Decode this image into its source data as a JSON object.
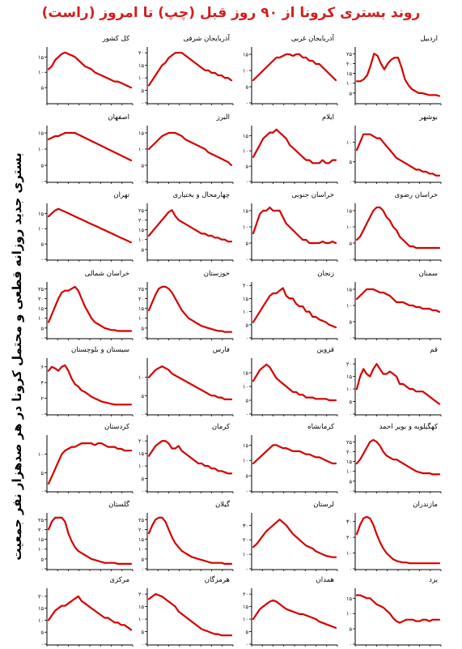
{
  "title": "روند بستری کرونا از ۹۰ روز قبل (چپ) تا امروز (راست)",
  "y_axis_title": "بستری جدید روزانه قطعی و محتمل کرونا در هر صدهزار نفر جمعیت",
  "colors": {
    "title": "#d41e1e",
    "line": "#d40000",
    "axis": "#000000"
  },
  "chart_data": [
    {
      "type": "line",
      "title": "اردبیل",
      "yticks": [
        5,
        10,
        15,
        20,
        25
      ],
      "ylim": [
        0,
        28
      ],
      "values": [
        11,
        11,
        12,
        14,
        19,
        25,
        24,
        20,
        17,
        20,
        22,
        23,
        23,
        18,
        12,
        9,
        7,
        6,
        5,
        5,
        4.5,
        4,
        4,
        4,
        3.5
      ]
    },
    {
      "type": "line",
      "title": "آذربایجان غربی",
      "yticks": [
        0,
        5,
        10,
        15
      ],
      "ylim": [
        0,
        17
      ],
      "values": [
        7,
        8,
        9,
        10,
        11,
        12,
        13,
        14,
        14,
        14.5,
        15,
        15,
        14.5,
        15,
        15,
        14,
        14,
        13,
        13,
        12,
        12,
        11,
        10,
        9,
        8,
        7
      ]
    },
    {
      "type": "line",
      "title": "آذربایجان شرقی",
      "yticks": [
        0,
        5,
        10,
        15,
        20
      ],
      "ylim": [
        0,
        22
      ],
      "values": [
        7,
        9,
        11,
        13,
        15,
        16,
        18,
        19,
        20,
        20,
        20,
        19,
        18,
        17,
        16,
        15,
        14,
        13,
        13,
        12,
        12,
        11,
        11,
        10,
        10,
        9
      ]
    },
    {
      "type": "line",
      "title": "کل کشور",
      "yticks": [
        5,
        10,
        15
      ],
      "ylim": [
        0,
        18
      ],
      "values": [
        11,
        12,
        14,
        15,
        16,
        16.5,
        16,
        15.5,
        15,
        14,
        13,
        12,
        11.5,
        11,
        10,
        9.5,
        9,
        8.5,
        8,
        7.5,
        7,
        7,
        6.5,
        6,
        5.5,
        5
      ]
    },
    {
      "type": "line",
      "title": "بوشهر",
      "yticks": [
        0,
        5,
        10
      ],
      "ylim": [
        0,
        14
      ],
      "values": [
        8,
        10,
        12,
        12,
        12,
        11.5,
        11,
        11,
        10,
        9,
        8,
        7,
        6,
        5.5,
        5,
        4.5,
        4,
        3.5,
        3,
        3,
        2.5,
        2.5,
        2,
        2,
        1.5,
        1.5
      ]
    },
    {
      "type": "line",
      "title": "ایلام",
      "yticks": [
        0,
        5,
        10,
        15
      ],
      "ylim": [
        0,
        18
      ],
      "values": [
        8,
        10,
        12,
        14,
        15,
        16,
        16,
        17,
        16,
        15,
        14,
        12,
        11,
        10,
        9,
        8,
        7,
        7,
        6,
        6,
        6,
        7,
        6,
        6,
        7,
        7
      ]
    },
    {
      "type": "line",
      "title": "البرز",
      "yticks": [
        0,
        5,
        10,
        15
      ],
      "ylim": [
        0,
        17
      ],
      "values": [
        10,
        11,
        12,
        13,
        14,
        14.5,
        15,
        15,
        15,
        14.5,
        14,
        13,
        12.5,
        12,
        11.5,
        11,
        10.5,
        10,
        9,
        8.5,
        8,
        7.5,
        7,
        6.5,
        6,
        5
      ]
    },
    {
      "type": "line",
      "title": "اصفهان",
      "yticks": [
        0,
        5,
        10,
        15
      ],
      "ylim": [
        0,
        17
      ],
      "values": [
        13,
        13.5,
        14,
        14,
        14.5,
        15,
        15,
        15,
        15,
        14.5,
        14,
        13.5,
        13,
        12.5,
        12,
        11.5,
        11,
        10.5,
        10,
        9.5,
        9,
        8.5,
        8,
        7.5,
        7,
        6.5
      ]
    },
    {
      "type": "line",
      "title": "خراسان رضوی",
      "yticks": [
        0,
        5,
        10,
        15
      ],
      "ylim": [
        0,
        17
      ],
      "values": [
        6,
        7,
        9,
        11,
        13,
        15,
        16,
        16,
        15,
        13,
        12,
        10,
        9,
        7,
        6,
        5,
        4,
        4,
        3.5,
        3.5,
        3.5,
        3.5,
        3.5,
        3.5,
        3.5,
        3.5
      ]
    },
    {
      "type": "line",
      "title": "خراسان جنوبی",
      "yticks": [
        0,
        5,
        10,
        15
      ],
      "ylim": [
        0,
        17
      ],
      "values": [
        8,
        11,
        14,
        15,
        15,
        16,
        15,
        15,
        15,
        13,
        11,
        10,
        9,
        8,
        7,
        6,
        6,
        5,
        5,
        5,
        5,
        5.5,
        5,
        5,
        5.5,
        5
      ]
    },
    {
      "type": "line",
      "title": "چهارمحال و بختیاری",
      "yticks": [
        5,
        10,
        15,
        20,
        25
      ],
      "ylim": [
        0,
        28
      ],
      "values": [
        12,
        14,
        16,
        18,
        20,
        22,
        24,
        25,
        22,
        20,
        19,
        18,
        17,
        16,
        15,
        14,
        13,
        13,
        12,
        12,
        11,
        11,
        10,
        10,
        9,
        9
      ]
    },
    {
      "type": "line",
      "title": "تهران",
      "yticks": [
        0,
        5,
        10,
        15
      ],
      "ylim": [
        0,
        18
      ],
      "values": [
        14,
        15,
        16,
        16.5,
        16,
        15.5,
        15,
        14.5,
        14,
        13.5,
        13,
        12.5,
        12,
        11.5,
        11,
        10.5,
        10,
        9.5,
        9,
        8.5,
        8,
        7.5,
        7,
        6.5,
        6,
        5.5
      ]
    },
    {
      "type": "line",
      "title": "سمنان",
      "yticks": [
        0,
        5,
        10,
        15
      ],
      "ylim": [
        0,
        17
      ],
      "values": [
        12,
        13,
        14,
        15,
        15,
        15,
        14.5,
        14,
        14,
        13.5,
        13,
        12,
        11,
        11,
        11,
        10.5,
        10,
        10,
        9.5,
        9.5,
        9,
        9,
        9,
        8.5,
        8.5,
        8
      ]
    },
    {
      "type": "line",
      "title": "زنجان",
      "yticks": [
        0,
        5,
        10,
        15,
        20
      ],
      "ylim": [
        0,
        21
      ],
      "values": [
        6,
        8,
        10,
        12,
        14,
        16,
        17,
        17,
        18,
        19,
        16,
        15,
        15,
        13,
        12,
        12,
        10,
        10,
        8,
        8,
        7,
        6.5,
        6,
        5,
        4.5,
        4
      ]
    },
    {
      "type": "line",
      "title": "خوزستان",
      "yticks": [
        0,
        5,
        10,
        15,
        20,
        25
      ],
      "ylim": [
        0,
        28
      ],
      "values": [
        14,
        18,
        22,
        25,
        26,
        26,
        25,
        23,
        20,
        17,
        14,
        12,
        10,
        9,
        8,
        7,
        6,
        5.5,
        5,
        4.5,
        4,
        3.5,
        3.5,
        3,
        3,
        3
      ]
    },
    {
      "type": "line",
      "title": "خراسان شمالی",
      "yticks": [
        0,
        5,
        10,
        15,
        20,
        25
      ],
      "ylim": [
        0,
        28
      ],
      "values": [
        8,
        12,
        16,
        20,
        23,
        24,
        24,
        25,
        26,
        24,
        20,
        16,
        13,
        10,
        8,
        7,
        6,
        5,
        4.5,
        4,
        4,
        3.5,
        3.5,
        3.5,
        3.5,
        3.5
      ]
    },
    {
      "type": "line",
      "title": "قم",
      "yticks": [
        0,
        5,
        10,
        15,
        20
      ],
      "ylim": [
        0,
        22
      ],
      "values": [
        10,
        15,
        18,
        16,
        15,
        18,
        20,
        18,
        16,
        16,
        17,
        16,
        15,
        12,
        12,
        11,
        10,
        10,
        9,
        9,
        9,
        8,
        7,
        6,
        5,
        4
      ]
    },
    {
      "type": "line",
      "title": "قزوین",
      "yticks": [
        0,
        5,
        10,
        15
      ],
      "ylim": [
        0,
        20
      ],
      "values": [
        12,
        14,
        16,
        17,
        18,
        17,
        15,
        13,
        12,
        11,
        10,
        9,
        8,
        8,
        7,
        7,
        6,
        6,
        6,
        5.5,
        5.5,
        5.5,
        5.5,
        5,
        5,
        5
      ]
    },
    {
      "type": "line",
      "title": "فارس",
      "yticks": [
        0,
        5,
        10
      ],
      "ylim": [
        0,
        15
      ],
      "values": [
        10,
        11,
        12,
        12.5,
        13,
        12.5,
        12,
        11,
        10.5,
        10,
        9.5,
        9,
        8.5,
        8,
        7.5,
        7,
        6.5,
        6,
        5.5,
        5,
        5,
        4.5,
        4.5,
        4,
        4,
        4
      ]
    },
    {
      "type": "line",
      "title": "سیستان و بلوچستان",
      "yticks": [
        0,
        2,
        4,
        6
      ],
      "ylim": [
        0,
        7
      ],
      "values": [
        5.5,
        6,
        5.8,
        5.5,
        6,
        6.2,
        5.5,
        4.5,
        3.8,
        3.5,
        3,
        2.8,
        2.5,
        2.2,
        2,
        1.8,
        1.6,
        1.5,
        1.4,
        1.3,
        1.2,
        1.2,
        1.2,
        1.2,
        1.2,
        1.2
      ]
    },
    {
      "type": "line",
      "title": "کهگیلویه و بویر احمد",
      "yticks": [
        0,
        5,
        10,
        15,
        20,
        25
      ],
      "ylim": [
        0,
        28
      ],
      "values": [
        14,
        16,
        19,
        22,
        25,
        26,
        25,
        23,
        20,
        18,
        17,
        16,
        16,
        15,
        14,
        13,
        12,
        11,
        10,
        9.5,
        9,
        9,
        9,
        8.5,
        8.5,
        8.5
      ]
    },
    {
      "type": "line",
      "title": "کرمانشاه",
      "yticks": [
        0,
        5,
        10,
        15
      ],
      "ylim": [
        0,
        18
      ],
      "values": [
        9,
        10,
        11,
        12,
        13,
        14,
        15,
        15,
        14.5,
        14,
        14,
        13.5,
        13,
        13,
        13,
        12.5,
        12,
        12,
        11.5,
        11,
        11,
        10.5,
        10,
        9.5,
        9,
        9
      ]
    },
    {
      "type": "line",
      "title": "کرمان",
      "yticks": [
        0,
        5,
        10,
        15,
        20
      ],
      "ylim": [
        0,
        22
      ],
      "values": [
        14,
        16,
        18,
        19,
        20,
        20,
        19,
        17,
        17,
        18,
        16,
        15,
        14,
        13,
        12,
        11,
        11,
        10,
        10,
        9,
        9,
        8,
        8,
        7.5,
        7,
        7
      ]
    },
    {
      "type": "line",
      "title": "کردستان",
      "yticks": [
        0,
        5,
        10
      ],
      "ylim": [
        0,
        15
      ],
      "values": [
        2,
        4,
        6,
        8,
        10,
        11,
        11.5,
        12,
        12,
        12.5,
        13,
        13,
        13,
        13,
        12.5,
        13,
        13,
        12.5,
        12,
        12,
        12,
        11.5,
        11.5,
        11,
        11,
        11
      ]
    },
    {
      "type": "line",
      "title": "مازندران",
      "yticks": [
        0,
        10,
        20,
        30
      ],
      "ylim": [
        0,
        35
      ],
      "values": [
        22,
        28,
        32,
        33,
        32,
        28,
        22,
        17,
        13,
        10,
        8,
        6,
        5,
        4.5,
        4,
        4,
        3.5,
        3.5,
        3.5,
        3.5,
        3.5,
        3.5,
        3.5,
        3.5,
        3.5,
        3.5
      ]
    },
    {
      "type": "line",
      "title": "لرستان",
      "yticks": [
        0,
        10,
        20,
        30
      ],
      "ylim": [
        0,
        38
      ],
      "values": [
        15,
        17,
        20,
        23,
        26,
        28,
        30,
        32,
        34,
        32,
        30,
        27,
        24,
        22,
        20,
        18,
        16,
        15,
        14,
        12,
        11,
        10,
        9,
        8.5,
        8,
        8
      ]
    },
    {
      "type": "line",
      "title": "گیلان",
      "yticks": [
        0,
        5,
        10,
        15,
        20,
        25
      ],
      "ylim": [
        0,
        28
      ],
      "values": [
        18,
        22,
        25,
        26,
        26,
        24,
        20,
        16,
        13,
        11,
        9,
        8,
        7,
        6,
        5.5,
        5,
        4.5,
        4,
        3.5,
        3,
        3,
        3,
        3,
        2.5,
        2.5,
        2.5
      ]
    },
    {
      "type": "line",
      "title": "گلستان",
      "yticks": [
        0,
        5,
        10,
        15,
        20,
        25
      ],
      "ylim": [
        0,
        28
      ],
      "values": [
        20,
        24,
        26,
        26,
        26,
        24,
        18,
        14,
        11,
        9,
        8,
        7,
        6,
        5,
        4.5,
        4,
        3.5,
        3,
        3,
        3,
        3,
        2.5,
        2.5,
        2.5,
        2.5,
        2.5
      ]
    },
    {
      "type": "line",
      "title": "یزد",
      "yticks": [
        0,
        5,
        10,
        15
      ],
      "ylim": [
        0,
        18
      ],
      "values": [
        16,
        16,
        15.5,
        15,
        15,
        14,
        13,
        12.5,
        12,
        11,
        10,
        8.5,
        7.5,
        7,
        7.5,
        8,
        8,
        8,
        7.5,
        7.5,
        8,
        8,
        7.5,
        8,
        8,
        8
      ]
    },
    {
      "type": "line",
      "title": "همدان",
      "yticks": [
        0,
        5,
        10,
        15,
        20
      ],
      "ylim": [
        0,
        22
      ],
      "values": [
        10,
        12,
        14,
        15,
        16,
        17,
        17.5,
        17,
        16,
        15,
        14,
        13.5,
        13,
        12.5,
        12,
        12,
        11.5,
        11,
        10.5,
        10,
        9,
        8.5,
        8,
        7.5,
        7,
        6.5
      ]
    },
    {
      "type": "line",
      "title": "هرمزگان",
      "yticks": [
        0,
        5,
        10,
        15,
        20
      ],
      "ylim": [
        0,
        22
      ],
      "values": [
        18,
        19,
        20,
        19.5,
        19,
        18,
        17,
        16,
        15,
        13,
        12,
        11,
        10,
        9,
        8,
        7,
        6,
        5.5,
        5,
        4.5,
        4,
        4,
        3.5,
        3.5,
        3.5,
        3.5
      ]
    },
    {
      "type": "line",
      "title": "مرکزی",
      "yticks": [
        0,
        5,
        10,
        15,
        20
      ],
      "ylim": [
        0,
        23
      ],
      "values": [
        10,
        12,
        14,
        15,
        16,
        16,
        17,
        18,
        19,
        20,
        18,
        17,
        16,
        15,
        14,
        13,
        12,
        11,
        11,
        10,
        9,
        9,
        8,
        8,
        7,
        6
      ]
    }
  ]
}
